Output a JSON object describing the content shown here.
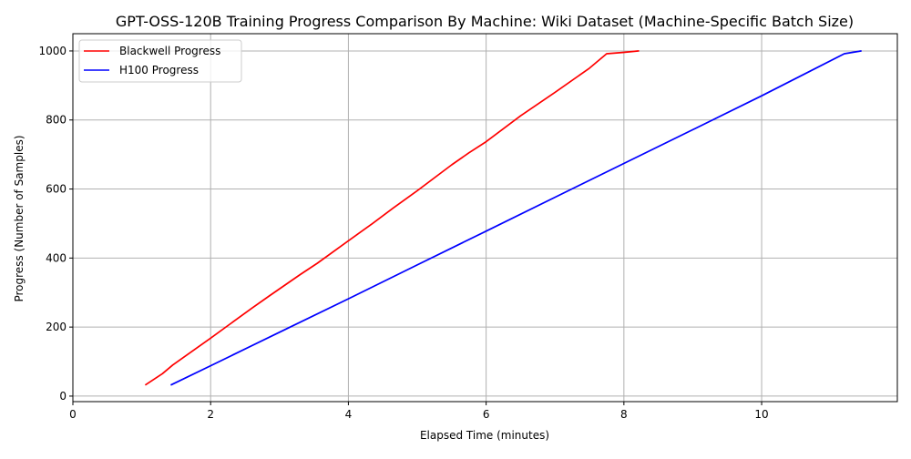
{
  "chart_data": {
    "type": "line",
    "title": "GPT-OSS-120B Training Progress Comparison By Machine: Wiki Dataset (Machine-Specific Batch Size)",
    "xlabel": "Elapsed Time (minutes)",
    "ylabel": "Progress (Number of Samples)",
    "xlim": [
      0,
      11.97
    ],
    "ylim": [
      -16,
      1050
    ],
    "xticks": [
      0,
      2,
      4,
      6,
      8,
      10
    ],
    "yticks": [
      0,
      200,
      400,
      600,
      800,
      1000
    ],
    "grid": true,
    "legend_position": "upper left",
    "series": [
      {
        "name": "Blackwell Progress",
        "color": "#ff0000",
        "x": [
          1.05,
          1.3,
          1.45,
          2.0,
          2.6,
          2.85,
          3.3,
          3.55,
          4.0,
          4.35,
          4.65,
          5.0,
          5.5,
          5.75,
          6.0,
          6.5,
          7.0,
          7.5,
          7.75,
          8.0,
          8.22
        ],
        "y": [
          32,
          65,
          90,
          168,
          255,
          290,
          352,
          385,
          450,
          500,
          545,
          595,
          670,
          705,
          737,
          812,
          880,
          950,
          992,
          996,
          1000
        ]
      },
      {
        "name": "H100 Progress",
        "color": "#0000ff",
        "x": [
          1.42,
          2.0,
          3.0,
          4.0,
          5.0,
          6.0,
          7.0,
          8.0,
          9.0,
          10.0,
          11.2,
          11.45
        ],
        "y": [
          32,
          88,
          185,
          282,
          380,
          478,
          576,
          674,
          772,
          870,
          992,
          1000
        ]
      }
    ]
  }
}
